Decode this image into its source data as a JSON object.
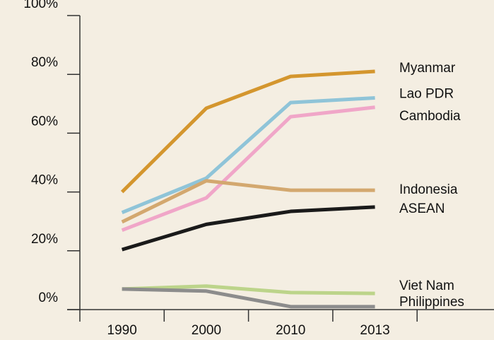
{
  "chart_data": {
    "type": "line",
    "categories": [
      "1990",
      "2000",
      "2010",
      "2013"
    ],
    "series": [
      {
        "name": "Myanmar",
        "color": "#d4962e",
        "values": [
          40,
          68.5,
          79.3,
          81
        ]
      },
      {
        "name": "Lao PDR",
        "color": "#8fc4d8",
        "values": [
          33,
          44.7,
          70.4,
          72
        ]
      },
      {
        "name": "Cambodia",
        "color": "#f0a6c8",
        "values": [
          27,
          38,
          65.6,
          68.8
        ]
      },
      {
        "name": "Indonesia",
        "color": "#d3a86f",
        "values": [
          29.8,
          43.8,
          40.6,
          40.6
        ]
      },
      {
        "name": "ASEAN",
        "color": "#1a1a1a",
        "values": [
          20.4,
          29,
          33.4,
          34.9
        ]
      },
      {
        "name": "Viet Nam",
        "color": "#bcd48a",
        "values": [
          7,
          8,
          5.8,
          5.5
        ]
      },
      {
        "name": "Philippines",
        "color": "#8c8c8c",
        "values": [
          7,
          6.3,
          1,
          1
        ]
      }
    ],
    "ylim": [
      0,
      100
    ],
    "yticks": [
      {
        "value": 0,
        "label": "0%"
      },
      {
        "value": 20,
        "label": "20%"
      },
      {
        "value": 40,
        "label": "40%"
      },
      {
        "value": 60,
        "label": "60%"
      },
      {
        "value": 80,
        "label": "80%"
      },
      {
        "value": 100,
        "label": "100%"
      }
    ]
  }
}
